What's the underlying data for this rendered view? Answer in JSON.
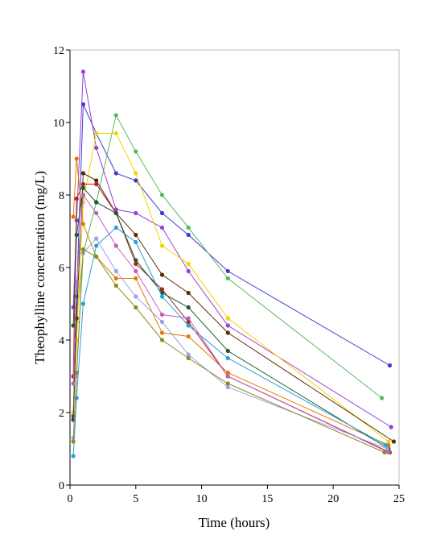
{
  "chart_data": {
    "type": "line",
    "xlabel": "Time (hours)",
    "ylabel": "Theophylline concentration (mg/L)",
    "xlim": [
      0,
      25
    ],
    "ylim": [
      0,
      12
    ],
    "xticks": [
      0,
      5,
      10,
      15,
      20,
      25
    ],
    "yticks": [
      0,
      2,
      4,
      6,
      8,
      10,
      12
    ],
    "grid": false,
    "series": [
      {
        "color": "#3b3bd4",
        "x": [
          0.25,
          0.5,
          1.0,
          2.0,
          3.5,
          5.0,
          7.0,
          9.0,
          12.0,
          24.3
        ],
        "y": [
          1.9,
          5.2,
          10.5,
          9.7,
          8.6,
          8.4,
          7.5,
          6.9,
          5.9,
          3.3
        ]
      },
      {
        "color": "#5cb85c",
        "x": [
          0.25,
          0.5,
          1.0,
          2.0,
          3.5,
          5.0,
          7.0,
          9.0,
          12.0,
          23.7
        ],
        "y": [
          2.0,
          4.5,
          6.4,
          7.8,
          10.2,
          9.2,
          8.0,
          7.1,
          5.7,
          2.4
        ]
      },
      {
        "color": "#9b3fdc",
        "x": [
          0.25,
          0.5,
          1.0,
          2.0,
          3.5,
          5.0,
          7.0,
          9.0,
          12.0,
          24.4
        ],
        "y": [
          4.9,
          7.3,
          11.4,
          9.3,
          7.6,
          7.5,
          7.1,
          5.9,
          4.4,
          1.6
        ]
      },
      {
        "color": "#f2d400",
        "x": [
          0.25,
          0.5,
          1.0,
          2.0,
          3.5,
          5.0,
          7.0,
          9.0,
          12.0,
          24.2
        ],
        "y": [
          2.0,
          4.0,
          7.8,
          9.7,
          9.7,
          8.6,
          6.6,
          6.1,
          4.6,
          1.2
        ]
      },
      {
        "color": "#5a2a0a",
        "x": [
          0.25,
          0.5,
          1.0,
          2.0,
          3.5,
          5.0,
          7.0,
          9.0,
          12.0,
          24.6
        ],
        "y": [
          1.8,
          4.6,
          8.6,
          8.4,
          7.5,
          6.9,
          5.8,
          5.3,
          4.2,
          1.2
        ]
      },
      {
        "color": "#e07b00",
        "x": [
          0.25,
          0.5,
          1.0,
          2.0,
          3.5,
          5.0,
          7.0,
          9.0,
          12.0,
          24.2
        ],
        "y": [
          7.4,
          9.0,
          7.2,
          6.3,
          5.7,
          5.7,
          4.2,
          4.1,
          3.1,
          1.1
        ]
      },
      {
        "color": "#b22222",
        "x": [
          0.25,
          0.5,
          1.0,
          2.0,
          3.5,
          5.0,
          7.0,
          9.0,
          12.0,
          24.3
        ],
        "y": [
          3.0,
          7.9,
          8.3,
          8.3,
          7.5,
          6.1,
          5.4,
          4.5,
          3.0,
          0.9
        ]
      },
      {
        "color": "#1a5c2e",
        "x": [
          0.25,
          0.5,
          1.0,
          2.0,
          3.5,
          5.0,
          7.0,
          9.0,
          12.0,
          24.2
        ],
        "y": [
          4.4,
          6.9,
          8.2,
          7.8,
          7.5,
          6.2,
          5.3,
          4.9,
          3.7,
          1.0
        ]
      },
      {
        "color": "#2aa0d8",
        "x": [
          0.25,
          0.5,
          1.0,
          2.0,
          3.5,
          5.0,
          7.0,
          9.0,
          12.0,
          24.0
        ],
        "y": [
          0.8,
          2.4,
          5.0,
          6.6,
          7.1,
          6.7,
          5.2,
          4.4,
          3.5,
          1.1
        ]
      },
      {
        "color": "#c060c0",
        "x": [
          0.25,
          0.5,
          1.0,
          2.0,
          3.5,
          5.0,
          7.0,
          9.0,
          12.0,
          24.2
        ],
        "y": [
          2.8,
          5.6,
          8.0,
          7.5,
          6.6,
          5.9,
          4.7,
          4.6,
          3.0,
          0.9
        ]
      },
      {
        "color": "#a0a0e6",
        "x": [
          0.25,
          0.5,
          1.0,
          2.0,
          3.5,
          5.0,
          7.0,
          9.0,
          12.0,
          24.1
        ],
        "y": [
          1.3,
          3.0,
          6.4,
          6.8,
          5.9,
          5.2,
          4.5,
          3.6,
          2.7,
          1.0
        ]
      },
      {
        "color": "#8c8c1e",
        "x": [
          0.25,
          0.5,
          1.0,
          2.0,
          3.5,
          5.0,
          7.0,
          9.0,
          12.0,
          23.9
        ],
        "y": [
          1.2,
          3.1,
          6.5,
          6.3,
          5.5,
          4.9,
          4.0,
          3.5,
          2.8,
          0.9
        ]
      }
    ]
  }
}
